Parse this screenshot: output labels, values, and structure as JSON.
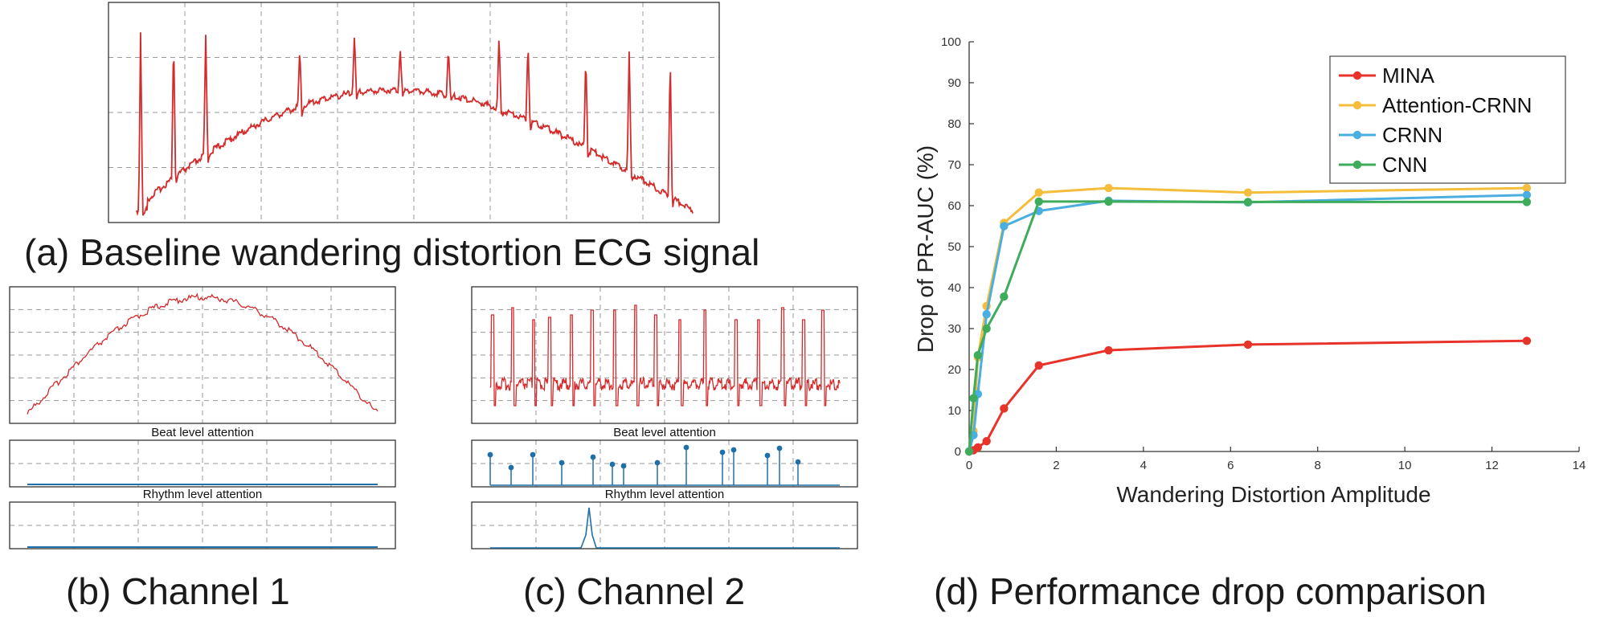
{
  "captions": {
    "a": "(a) Baseline wandering distortion ECG signal",
    "b": "(b) Channel 1",
    "c": "(c) Channel 2",
    "d": "(d) Performance drop comparison"
  },
  "panel_labels": {
    "beat": "Beat level attention",
    "rhythm": "Rhythm level attention"
  },
  "colors": {
    "ecg": "#d42a2a",
    "attention": "#1f6fa8"
  },
  "chart_data": {
    "type": "line",
    "title": "",
    "xlabel": "Wandering Distortion Amplitude",
    "ylabel": "Drop of PR-AUC (%)",
    "xlim": [
      0,
      14
    ],
    "ylim": [
      0,
      100
    ],
    "xticks": [
      "0",
      "2",
      "4",
      "6",
      "8",
      "10",
      "12",
      "14"
    ],
    "yticks": [
      "0",
      "10",
      "20",
      "30",
      "40",
      "50",
      "60",
      "70",
      "80",
      "90",
      "100"
    ],
    "legend_position": "top-right",
    "grid": false,
    "series": [
      {
        "name": "MINA",
        "color": "#e8332b",
        "x": [
          0,
          0.1,
          0.2,
          0.4,
          0.8,
          1.6,
          3.2,
          6.4,
          12.8
        ],
        "y": [
          0,
          0.3,
          1,
          2.5,
          10.5,
          21,
          24.7,
          26.1,
          27
        ]
      },
      {
        "name": "Attention-CRNN",
        "color": "#f5bd3c",
        "x": [
          0,
          0.1,
          0.2,
          0.4,
          0.8,
          1.6,
          3.2,
          6.4,
          12.8
        ],
        "y": [
          0,
          5,
          23,
          35.5,
          55.8,
          63.2,
          64.3,
          63.2,
          64.3
        ]
      },
      {
        "name": "CRNN",
        "color": "#4aaee0",
        "x": [
          0,
          0.1,
          0.2,
          0.4,
          0.8,
          1.6,
          3.2,
          6.4,
          12.8
        ],
        "y": [
          0,
          4,
          14,
          33.5,
          55,
          58.7,
          61.2,
          60.8,
          62.6
        ]
      },
      {
        "name": "CNN",
        "color": "#3fac5c",
        "x": [
          0,
          0.1,
          0.2,
          0.4,
          0.8,
          1.6,
          3.2,
          6.4,
          12.8
        ],
        "y": [
          0,
          13,
          23.5,
          30,
          37.8,
          61,
          61,
          60.9,
          60.9
        ]
      }
    ]
  }
}
